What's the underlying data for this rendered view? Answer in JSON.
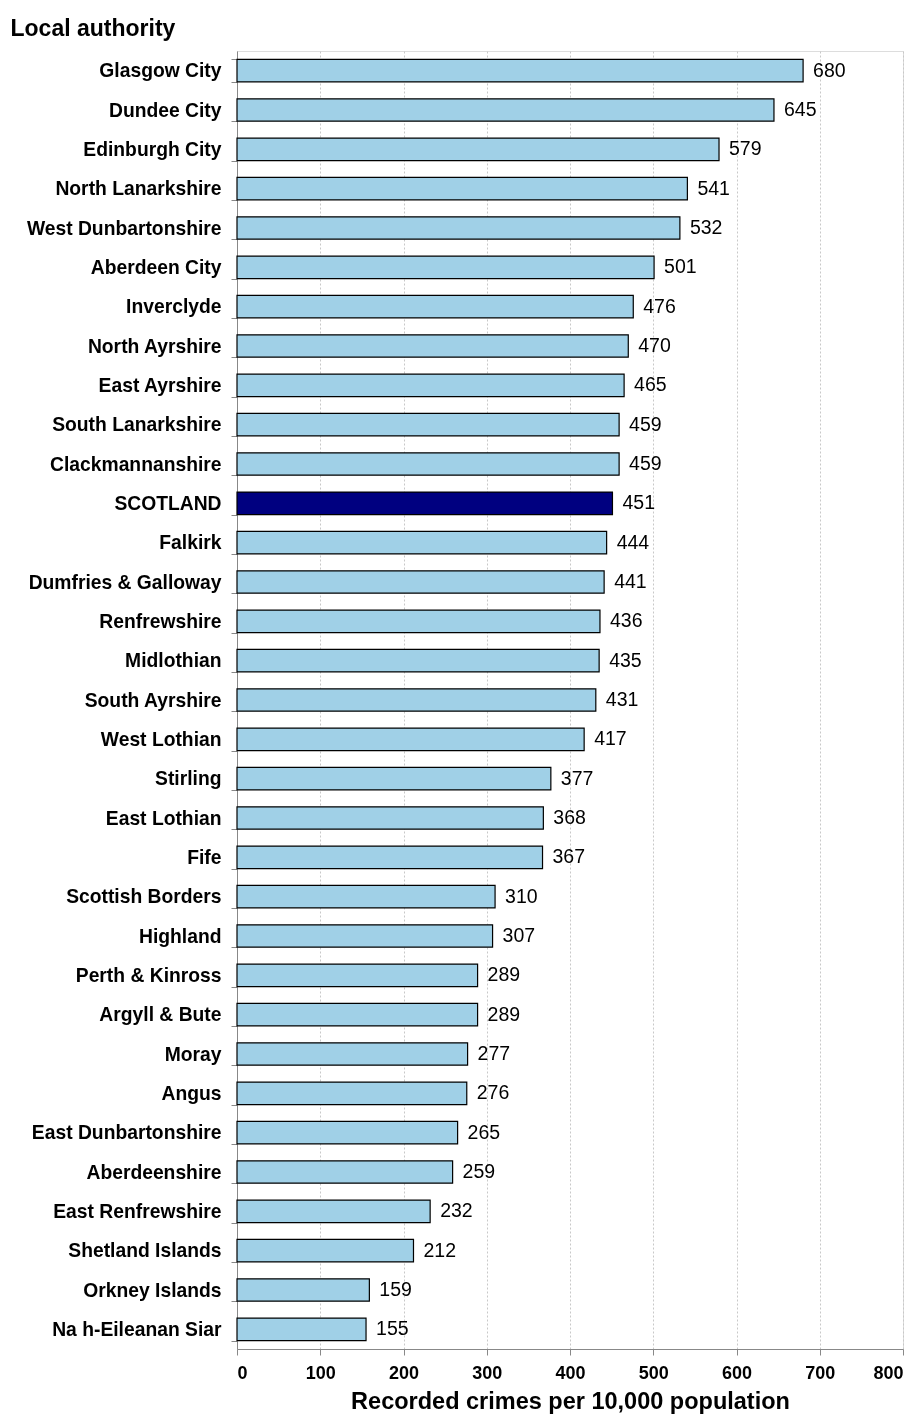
{
  "chart_data": {
    "type": "bar",
    "orientation": "horizontal",
    "ylabel": "Local authority",
    "xlabel": "Recorded crimes per 10,000 population",
    "categories": [
      "Glasgow City",
      "Dundee City",
      "Edinburgh City",
      "North Lanarkshire",
      "West Dunbartonshire",
      "Aberdeen City",
      "Inverclyde",
      "North Ayrshire",
      "East Ayrshire",
      "South Lanarkshire",
      "Clackmannanshire",
      "SCOTLAND",
      "Falkirk",
      "Dumfries & Galloway",
      "Renfrewshire",
      "Midlothian",
      "South Ayrshire",
      "West Lothian",
      "Stirling",
      "East Lothian",
      "Fife",
      "Scottish Borders",
      "Highland",
      "Perth & Kinross",
      "Argyll & Bute",
      "Moray",
      "Angus",
      "East Dunbartonshire",
      "Aberdeenshire",
      "East Renfrewshire",
      "Shetland Islands",
      "Orkney Islands",
      "Na h-Eileanan Siar"
    ],
    "values": [
      680,
      645,
      579,
      541,
      532,
      501,
      476,
      470,
      465,
      459,
      459,
      451,
      444,
      441,
      436,
      435,
      431,
      417,
      377,
      368,
      367,
      310,
      307,
      289,
      289,
      277,
      276,
      265,
      259,
      232,
      212,
      159,
      155
    ],
    "colors": [
      "#a0d0e7",
      "#a0d0e7",
      "#a0d0e7",
      "#a0d0e7",
      "#a0d0e7",
      "#a0d0e7",
      "#a0d0e7",
      "#a0d0e7",
      "#a0d0e7",
      "#a0d0e7",
      "#a0d0e7",
      "#000080",
      "#a0d0e7",
      "#a0d0e7",
      "#a0d0e7",
      "#a0d0e7",
      "#a0d0e7",
      "#a0d0e7",
      "#a0d0e7",
      "#a0d0e7",
      "#a0d0e7",
      "#a0d0e7",
      "#a0d0e7",
      "#a0d0e7",
      "#a0d0e7",
      "#a0d0e7",
      "#a0d0e7",
      "#a0d0e7",
      "#a0d0e7",
      "#a0d0e7",
      "#a0d0e7",
      "#a0d0e7",
      "#a0d0e7"
    ],
    "xlim": [
      0,
      800
    ],
    "xticks": [
      0,
      100,
      200,
      300,
      400,
      500,
      600,
      700,
      800
    ],
    "grid": "x",
    "data_labels": true
  }
}
